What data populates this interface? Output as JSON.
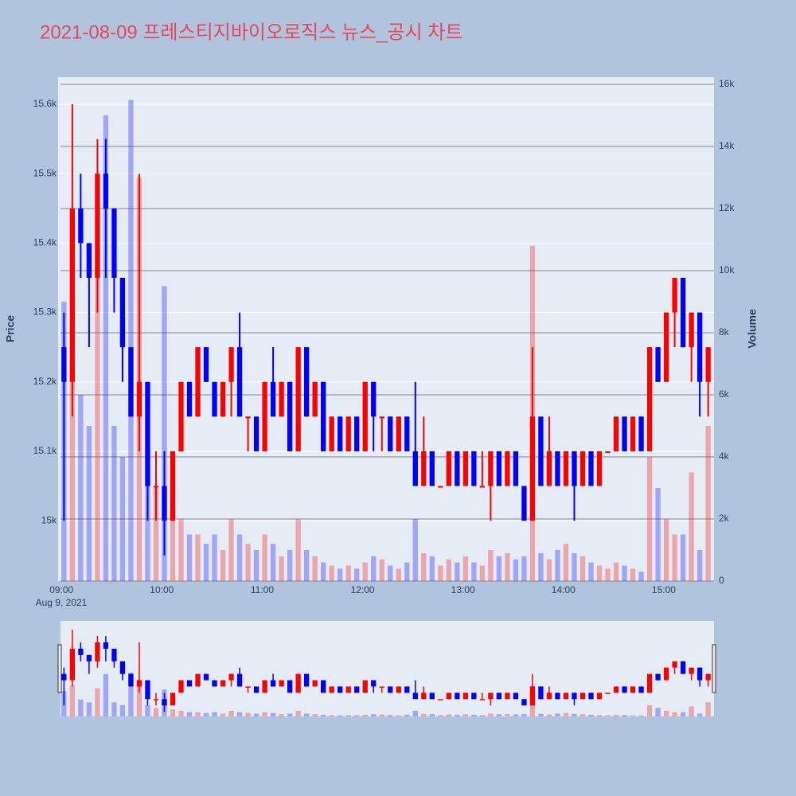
{
  "chart_data": {
    "type": "candlestick",
    "title": "2021-08-09 프레스티지바이오로직스 뉴스_공시 차트",
    "yaxis_title": "Price",
    "y2axis_title": "Volume",
    "x_sublabel": "Aug 9, 2021",
    "increasing_color": "#ff0000",
    "decreasing_color": "#0000ff",
    "grid": true,
    "rangeslider": true,
    "x": [
      "2021-08-09 09:00",
      "2021-08-09 09:05",
      "2021-08-09 09:10",
      "2021-08-09 09:15",
      "2021-08-09 09:20",
      "2021-08-09 09:25",
      "2021-08-09 09:30",
      "2021-08-09 09:35",
      "2021-08-09 09:40",
      "2021-08-09 09:45",
      "2021-08-09 09:50",
      "2021-08-09 09:55",
      "2021-08-09 10:00",
      "2021-08-09 10:05",
      "2021-08-09 10:10",
      "2021-08-09 10:15",
      "2021-08-09 10:20",
      "2021-08-09 10:25",
      "2021-08-09 10:30",
      "2021-08-09 10:35",
      "2021-08-09 10:40",
      "2021-08-09 10:45",
      "2021-08-09 10:50",
      "2021-08-09 10:55",
      "2021-08-09 11:00",
      "2021-08-09 11:05",
      "2021-08-09 11:10",
      "2021-08-09 11:15",
      "2021-08-09 11:20",
      "2021-08-09 11:25",
      "2021-08-09 11:30",
      "2021-08-09 11:35",
      "2021-08-09 11:40",
      "2021-08-09 11:45",
      "2021-08-09 11:50",
      "2021-08-09 11:55",
      "2021-08-09 12:00",
      "2021-08-09 12:05",
      "2021-08-09 12:10",
      "2021-08-09 12:15",
      "2021-08-09 12:20",
      "2021-08-09 12:25",
      "2021-08-09 12:30",
      "2021-08-09 12:35",
      "2021-08-09 12:40",
      "2021-08-09 12:45",
      "2021-08-09 12:50",
      "2021-08-09 12:55",
      "2021-08-09 13:00",
      "2021-08-09 13:05",
      "2021-08-09 13:10",
      "2021-08-09 13:15",
      "2021-08-09 13:20",
      "2021-08-09 13:25",
      "2021-08-09 13:30",
      "2021-08-09 13:35",
      "2021-08-09 13:40",
      "2021-08-09 13:45",
      "2021-08-09 13:50",
      "2021-08-09 13:55",
      "2021-08-09 14:00",
      "2021-08-09 14:05",
      "2021-08-09 14:10",
      "2021-08-09 14:15",
      "2021-08-09 14:20",
      "2021-08-09 14:25",
      "2021-08-09 14:30",
      "2021-08-09 14:35",
      "2021-08-09 14:40",
      "2021-08-09 14:45",
      "2021-08-09 14:50",
      "2021-08-09 14:55",
      "2021-08-09 15:00",
      "2021-08-09 15:05",
      "2021-08-09 15:10",
      "2021-08-09 15:15",
      "2021-08-09 15:20",
      "2021-08-09 15:25"
    ],
    "open": [
      15250,
      15200,
      15450,
      15400,
      15350,
      15500,
      15450,
      15350,
      15250,
      15150,
      15200,
      15050,
      15050,
      15000,
      15100,
      15200,
      15150,
      15250,
      15200,
      15150,
      15200,
      15250,
      15150,
      15150,
      15100,
      15200,
      15150,
      15200,
      15100,
      15250,
      15150,
      15200,
      15100,
      15150,
      15100,
      15150,
      15100,
      15200,
      15150,
      15150,
      15100,
      15150,
      15100,
      15050,
      15100,
      15050,
      15050,
      15100,
      15050,
      15100,
      15050,
      15050,
      15100,
      15050,
      15100,
      15050,
      15000,
      15150,
      15050,
      15100,
      15050,
      15100,
      15050,
      15100,
      15050,
      15100,
      15100,
      15150,
      15100,
      15150,
      15100,
      15250,
      15200,
      15300,
      15350,
      15250,
      15300,
      15200
    ],
    "high": [
      15300,
      15600,
      15500,
      15400,
      15550,
      15550,
      15450,
      15350,
      15250,
      15500,
      15200,
      15100,
      15100,
      15100,
      15200,
      15200,
      15250,
      15250,
      15200,
      15200,
      15250,
      15300,
      15150,
      15150,
      15200,
      15250,
      15200,
      15200,
      15250,
      15250,
      15200,
      15200,
      15150,
      15150,
      15150,
      15150,
      15200,
      15200,
      15150,
      15150,
      15150,
      15150,
      15200,
      15150,
      15100,
      15050,
      15100,
      15100,
      15100,
      15100,
      15100,
      15100,
      15100,
      15100,
      15100,
      15050,
      15250,
      15150,
      15150,
      15100,
      15100,
      15100,
      15100,
      15100,
      15100,
      15100,
      15150,
      15150,
      15150,
      15150,
      15250,
      15250,
      15300,
      15350,
      15350,
      15300,
      15300,
      15250
    ],
    "low": [
      15000,
      15150,
      15350,
      15250,
      15300,
      15350,
      15300,
      15200,
      15150,
      15100,
      15000,
      15000,
      14950,
      15000,
      15100,
      15150,
      15150,
      15200,
      15150,
      15150,
      15150,
      15150,
      15100,
      15100,
      15100,
      15150,
      15150,
      15100,
      15100,
      15150,
      15150,
      15100,
      15100,
      15100,
      15100,
      15100,
      15100,
      15100,
      15100,
      15100,
      15100,
      15100,
      15050,
      15050,
      15050,
      15050,
      15050,
      15050,
      15050,
      15050,
      15050,
      15000,
      15050,
      15050,
      15050,
      15000,
      15000,
      15050,
      15050,
      15050,
      15050,
      15000,
      15050,
      15050,
      15050,
      15100,
      15100,
      15100,
      15100,
      15100,
      15100,
      15200,
      15200,
      15250,
      15250,
      15200,
      15150,
      15150
    ],
    "close": [
      15200,
      15450,
      15400,
      15350,
      15500,
      15450,
      15350,
      15250,
      15150,
      15200,
      15050,
      15050,
      15000,
      15100,
      15200,
      15150,
      15250,
      15200,
      15150,
      15200,
      15250,
      15150,
      15150,
      15100,
      15200,
      15150,
      15200,
      15100,
      15250,
      15150,
      15200,
      15100,
      15150,
      15100,
      15150,
      15100,
      15200,
      15150,
      15150,
      15100,
      15150,
      15100,
      15050,
      15100,
      15050,
      15050,
      15100,
      15050,
      15100,
      15050,
      15050,
      15100,
      15050,
      15100,
      15050,
      15000,
      15150,
      15050,
      15100,
      15050,
      15100,
      15050,
      15100,
      15050,
      15100,
      15100,
      15150,
      15100,
      15150,
      15100,
      15250,
      15200,
      15300,
      15350,
      15250,
      15300,
      15200,
      15250
    ],
    "volume": [
      9000,
      11000,
      6000,
      5000,
      10000,
      15000,
      5000,
      4000,
      15500,
      13000,
      4000,
      3000,
      9500,
      2500,
      2000,
      1500,
      1500,
      1200,
      1500,
      1000,
      2000,
      1500,
      1200,
      1000,
      1500,
      1200,
      800,
      1000,
      2000,
      1000,
      800,
      600,
      500,
      400,
      500,
      400,
      600,
      800,
      700,
      500,
      400,
      600,
      2000,
      900,
      800,
      500,
      700,
      600,
      800,
      600,
      500,
      1000,
      800,
      900,
      700,
      800,
      10800,
      900,
      700,
      1000,
      1200,
      900,
      800,
      600,
      500,
      400,
      600,
      500,
      400,
      300,
      4000,
      3000,
      2000,
      1500,
      1500,
      3500,
      1000,
      5000
    ],
    "xlim": [
      "2021-08-09 08:58",
      "2021-08-09 15:30"
    ],
    "xticks": [
      {
        "value": "2021-08-09 09:00",
        "label": "09:00"
      },
      {
        "value": "2021-08-09 10:00",
        "label": "10:00"
      },
      {
        "value": "2021-08-09 11:00",
        "label": "11:00"
      },
      {
        "value": "2021-08-09 12:00",
        "label": "12:00"
      },
      {
        "value": "2021-08-09 13:00",
        "label": "13:00"
      },
      {
        "value": "2021-08-09 14:00",
        "label": "14:00"
      },
      {
        "value": "2021-08-09 15:00",
        "label": "15:00"
      }
    ],
    "ylim": [
      14913,
      15639
    ],
    "yticks": [
      {
        "value": 15000,
        "label": "15k"
      },
      {
        "value": 15100,
        "label": "15.1k"
      },
      {
        "value": 15200,
        "label": "15.2k"
      },
      {
        "value": 15300,
        "label": "15.3k"
      },
      {
        "value": 15400,
        "label": "15.4k"
      },
      {
        "value": 15500,
        "label": "15.5k"
      },
      {
        "value": 15600,
        "label": "15.6k"
      }
    ],
    "y2lim": [
      0,
      16230
    ],
    "y2ticks": [
      0,
      {
        "value": 2000,
        "label": "2k"
      },
      {
        "value": 4000,
        "label": "4k"
      },
      {
        "value": 6000,
        "label": "6k"
      },
      {
        "value": 8000,
        "label": "8k"
      },
      {
        "value": 10000,
        "label": "10k"
      },
      {
        "value": 12000,
        "label": "12k"
      },
      {
        "value": 14000,
        "label": "14k"
      },
      {
        "value": 16000,
        "label": "16k"
      }
    ]
  }
}
